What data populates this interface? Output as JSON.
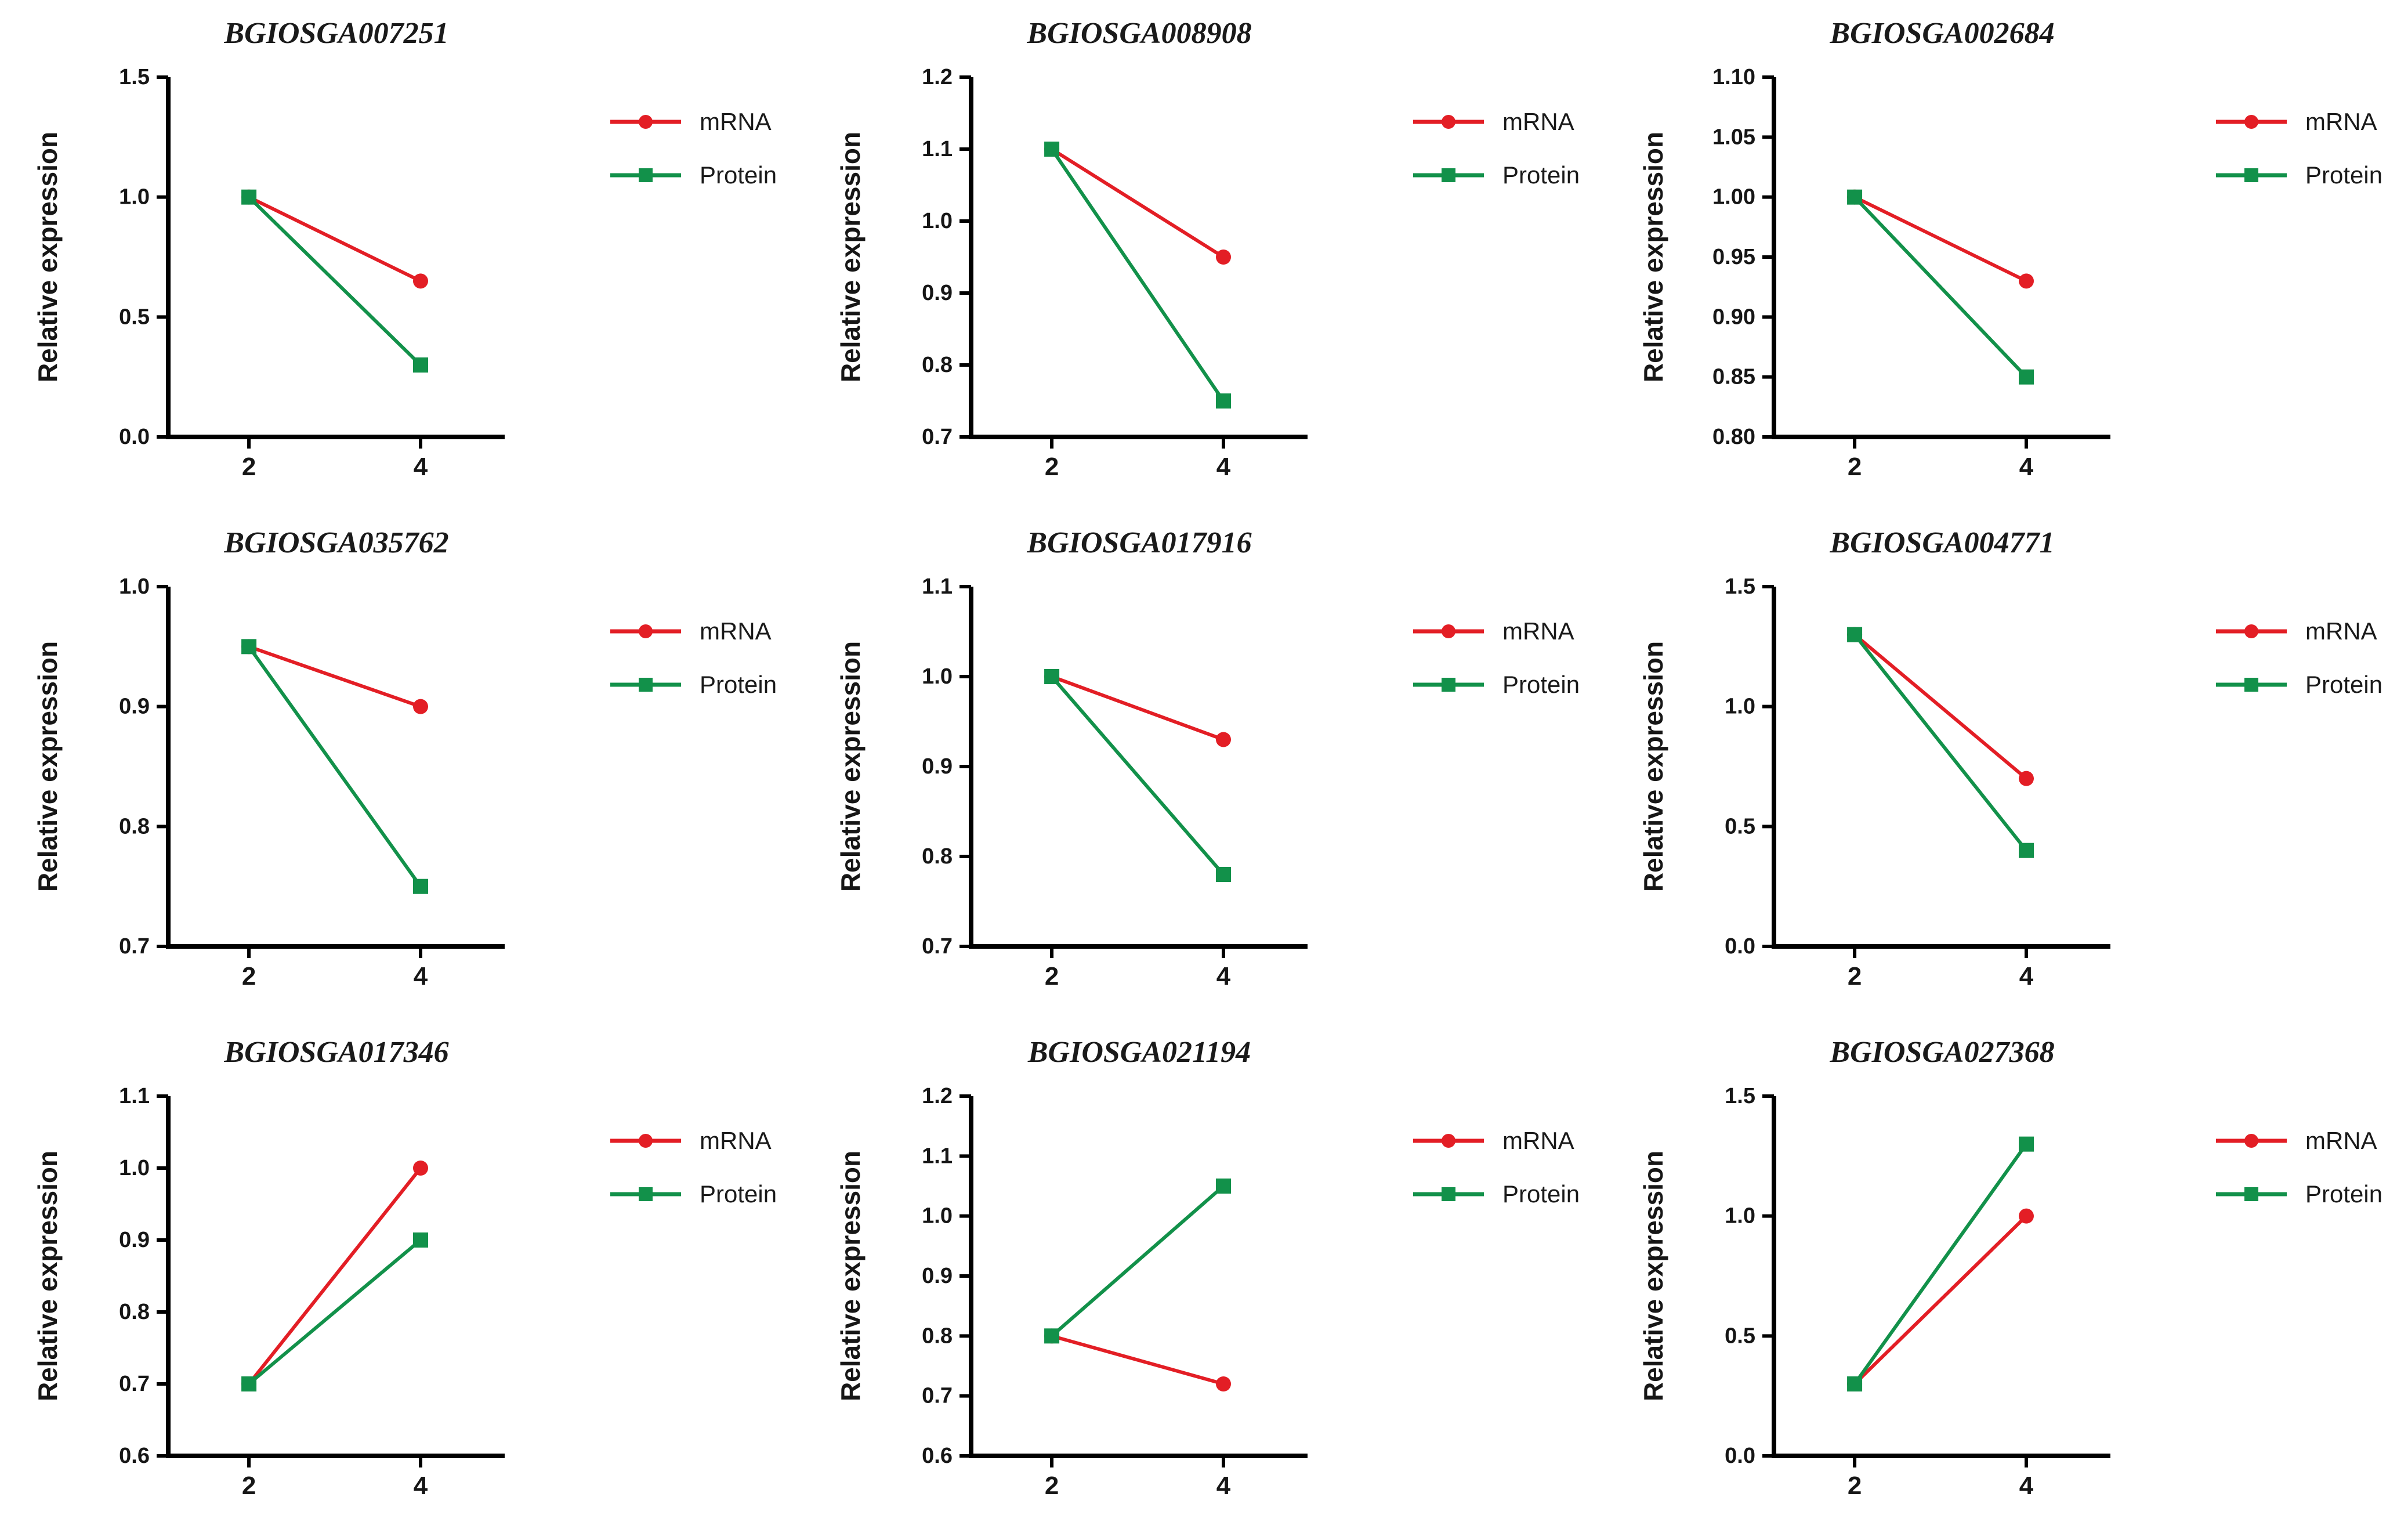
{
  "figure": {
    "background": "#ffffff",
    "ylabel": "Relative expression",
    "xlabel": "",
    "legend": {
      "position": "right-top",
      "mrna_label": "mRNA",
      "protein_label": "Protein"
    }
  },
  "colors": {
    "mrna": "#e31e25",
    "protein": "#12914a",
    "axis": "#000000",
    "text": "#161616"
  },
  "chart_data": [
    {
      "type": "line",
      "title": "BGIOSGA007251",
      "xlabel": "",
      "ylabel": "Relative expression",
      "x": [
        2,
        4
      ],
      "xtick_labels": [
        "2",
        "4"
      ],
      "xlim": [
        1.06,
        4.98
      ],
      "ylim": [
        0.0,
        1.5
      ],
      "ytick_labels": [
        "0.0",
        "0.5",
        "1.0",
        "1.5"
      ],
      "grid": false,
      "legend_position": "right-top",
      "series": [
        {
          "name": "mRNA",
          "marker": "circle",
          "color": "#e31e25",
          "values": [
            1.0,
            0.65
          ]
        },
        {
          "name": "Protein",
          "marker": "square",
          "color": "#12914a",
          "values": [
            1.0,
            0.3
          ]
        }
      ]
    },
    {
      "type": "line",
      "title": "BGIOSGA008908",
      "xlabel": "",
      "ylabel": "Relative expression",
      "x": [
        2,
        4
      ],
      "xtick_labels": [
        "2",
        "4"
      ],
      "xlim": [
        1.06,
        4.98
      ],
      "ylim": [
        0.7,
        1.2
      ],
      "ytick_labels": [
        "0.7",
        "0.8",
        "0.9",
        "1.0",
        "1.1",
        "1.2"
      ],
      "grid": false,
      "legend_position": "right-top",
      "series": [
        {
          "name": "mRNA",
          "marker": "circle",
          "color": "#e31e25",
          "values": [
            1.1,
            0.95
          ]
        },
        {
          "name": "Protein",
          "marker": "square",
          "color": "#12914a",
          "values": [
            1.1,
            0.75
          ]
        }
      ]
    },
    {
      "type": "line",
      "title": "BGIOSGA002684",
      "xlabel": "",
      "ylabel": "Relative expression",
      "x": [
        2,
        4
      ],
      "xtick_labels": [
        "2",
        "4"
      ],
      "xlim": [
        1.06,
        4.98
      ],
      "ylim": [
        0.8,
        1.1
      ],
      "ytick_labels": [
        "0.80",
        "0.85",
        "0.90",
        "0.95",
        "1.00",
        "1.05",
        "1.10"
      ],
      "grid": false,
      "legend_position": "right-top",
      "series": [
        {
          "name": "mRNA",
          "marker": "circle",
          "color": "#e31e25",
          "values": [
            1.0,
            0.93
          ]
        },
        {
          "name": "Protein",
          "marker": "square",
          "color": "#12914a",
          "values": [
            1.0,
            0.85
          ]
        }
      ]
    },
    {
      "type": "line",
      "title": "BGIOSGA035762",
      "xlabel": "",
      "ylabel": "Relative expression",
      "x": [
        2,
        4
      ],
      "xtick_labels": [
        "2",
        "4"
      ],
      "xlim": [
        1.06,
        4.98
      ],
      "ylim": [
        0.7,
        1.0
      ],
      "ytick_labels": [
        "0.7",
        "0.8",
        "0.9",
        "1.0"
      ],
      "grid": false,
      "legend_position": "right-top",
      "series": [
        {
          "name": "mRNA",
          "marker": "circle",
          "color": "#e31e25",
          "values": [
            0.95,
            0.9
          ]
        },
        {
          "name": "Protein",
          "marker": "square",
          "color": "#12914a",
          "values": [
            0.95,
            0.75
          ]
        }
      ]
    },
    {
      "type": "line",
      "title": "BGIOSGA017916",
      "xlabel": "",
      "ylabel": "Relative expression",
      "x": [
        2,
        4
      ],
      "xtick_labels": [
        "2",
        "4"
      ],
      "xlim": [
        1.06,
        4.98
      ],
      "ylim": [
        0.7,
        1.1
      ],
      "ytick_labels": [
        "0.7",
        "0.8",
        "0.9",
        "1.0",
        "1.1"
      ],
      "grid": false,
      "legend_position": "right-top",
      "series": [
        {
          "name": "mRNA",
          "marker": "circle",
          "color": "#e31e25",
          "values": [
            1.0,
            0.93
          ]
        },
        {
          "name": "Protein",
          "marker": "square",
          "color": "#12914a",
          "values": [
            1.0,
            0.78
          ]
        }
      ]
    },
    {
      "type": "line",
      "title": "BGIOSGA004771",
      "xlabel": "",
      "ylabel": "Relative expression",
      "x": [
        2,
        4
      ],
      "xtick_labels": [
        "2",
        "4"
      ],
      "xlim": [
        1.06,
        4.98
      ],
      "ylim": [
        0.0,
        1.5
      ],
      "ytick_labels": [
        "0.0",
        "0.5",
        "1.0",
        "1.5"
      ],
      "grid": false,
      "legend_position": "right-top",
      "series": [
        {
          "name": "mRNA",
          "marker": "circle",
          "color": "#e31e25",
          "values": [
            1.3,
            0.7
          ]
        },
        {
          "name": "Protein",
          "marker": "square",
          "color": "#12914a",
          "values": [
            1.3,
            0.4
          ]
        }
      ]
    },
    {
      "type": "line",
      "title": "BGIOSGA017346",
      "xlabel": "",
      "ylabel": "Relative expression",
      "x": [
        2,
        4
      ],
      "xtick_labels": [
        "2",
        "4"
      ],
      "xlim": [
        1.06,
        4.98
      ],
      "ylim": [
        0.6,
        1.1
      ],
      "ytick_labels": [
        "0.6",
        "0.7",
        "0.8",
        "0.9",
        "1.0",
        "1.1"
      ],
      "grid": false,
      "legend_position": "right-top",
      "series": [
        {
          "name": "mRNA",
          "marker": "circle",
          "color": "#e31e25",
          "values": [
            0.7,
            1.0
          ]
        },
        {
          "name": "Protein",
          "marker": "square",
          "color": "#12914a",
          "values": [
            0.7,
            0.9
          ]
        }
      ]
    },
    {
      "type": "line",
      "title": "BGIOSGA021194",
      "xlabel": "",
      "ylabel": "Relative expression",
      "x": [
        2,
        4
      ],
      "xtick_labels": [
        "2",
        "4"
      ],
      "xlim": [
        1.06,
        4.98
      ],
      "ylim": [
        0.6,
        1.2
      ],
      "ytick_labels": [
        "0.6",
        "0.7",
        "0.8",
        "0.9",
        "1.0",
        "1.1",
        "1.2"
      ],
      "grid": false,
      "legend_position": "right-top",
      "series": [
        {
          "name": "mRNA",
          "marker": "circle",
          "color": "#e31e25",
          "values": [
            0.8,
            0.72
          ]
        },
        {
          "name": "Protein",
          "marker": "square",
          "color": "#12914a",
          "values": [
            0.8,
            1.05
          ]
        }
      ]
    },
    {
      "type": "line",
      "title": "BGIOSGA027368",
      "xlabel": "",
      "ylabel": "Relative expression",
      "x": [
        2,
        4
      ],
      "xtick_labels": [
        "2",
        "4"
      ],
      "xlim": [
        1.06,
        4.98
      ],
      "ylim": [
        0.0,
        1.5
      ],
      "ytick_labels": [
        "0.0",
        "0.5",
        "1.0",
        "1.5"
      ],
      "grid": false,
      "legend_position": "right-top",
      "series": [
        {
          "name": "mRNA",
          "marker": "circle",
          "color": "#e31e25",
          "values": [
            0.3,
            1.0
          ]
        },
        {
          "name": "Protein",
          "marker": "square",
          "color": "#12914a",
          "values": [
            0.3,
            1.3
          ]
        }
      ]
    }
  ]
}
